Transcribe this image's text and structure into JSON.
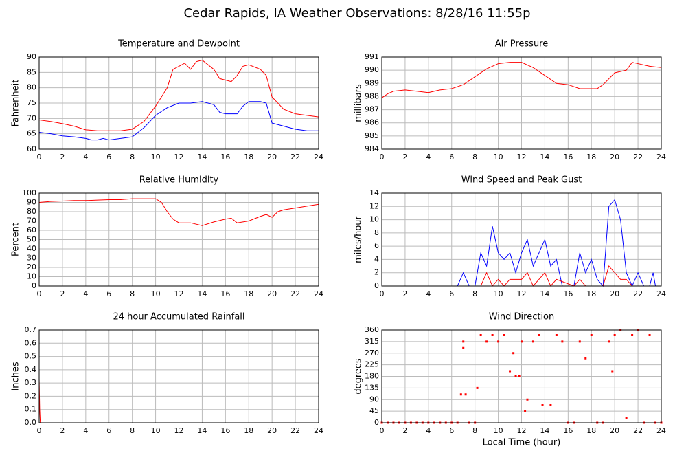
{
  "title": "Cedar Rapids, IA Weather Observations: 8/28/16 11:55p",
  "chart_data": [
    {
      "type": "line",
      "title": "Temperature and Dewpoint",
      "ylabel": "Fahrenheit",
      "xlim": [
        0,
        24
      ],
      "xticks": [
        0,
        2,
        4,
        6,
        8,
        10,
        12,
        14,
        16,
        18,
        20,
        22,
        24
      ],
      "ylim": [
        60,
        90
      ],
      "yticks": [
        60,
        65,
        70,
        75,
        80,
        85,
        90
      ],
      "grid": true,
      "series": [
        {
          "color": "#ff0000",
          "x": [
            0,
            1,
            2,
            3,
            4,
            5,
            6,
            7,
            8,
            9,
            10,
            11,
            11.5,
            12,
            12.5,
            13,
            13.5,
            14,
            15,
            15.5,
            16,
            16.5,
            17,
            17.5,
            18,
            19,
            19.5,
            20,
            21,
            22,
            23,
            24
          ],
          "values": [
            69.5,
            69,
            68.3,
            67.5,
            66.3,
            66,
            66,
            66,
            66.5,
            69,
            74,
            80,
            86,
            87,
            88,
            86,
            88.5,
            89,
            86,
            83,
            82.5,
            82,
            84,
            87,
            87.5,
            86,
            84,
            77,
            73,
            71.5,
            71,
            70.5
          ]
        },
        {
          "color": "#0000ff",
          "x": [
            0,
            1,
            2,
            3,
            4,
            4.5,
            5,
            5.5,
            6,
            7,
            8,
            9,
            10,
            11,
            12,
            13,
            14,
            15,
            15.5,
            16,
            17,
            17.5,
            18,
            19,
            19.5,
            20,
            21,
            22,
            23,
            24
          ],
          "values": [
            65.5,
            65,
            64.3,
            64,
            63.5,
            63,
            63,
            63.5,
            63,
            63.5,
            64,
            67,
            71,
            73.5,
            75,
            75,
            75.5,
            74.5,
            72,
            71.5,
            71.5,
            74,
            75.5,
            75.5,
            75,
            68.5,
            67.5,
            66.5,
            66,
            66
          ]
        }
      ]
    },
    {
      "type": "line",
      "title": "Air Pressure",
      "ylabel": "millibars",
      "xlim": [
        0,
        24
      ],
      "xticks": [
        0,
        2,
        4,
        6,
        8,
        10,
        12,
        14,
        16,
        18,
        20,
        22,
        24
      ],
      "ylim": [
        984,
        991
      ],
      "yticks": [
        984,
        985,
        986,
        987,
        988,
        989,
        990,
        991
      ],
      "grid": true,
      "series": [
        {
          "color": "#ff0000",
          "x": [
            0,
            0.5,
            1,
            2,
            3,
            4,
            5,
            6,
            7,
            8,
            9,
            10,
            11,
            12,
            13,
            14,
            15,
            16,
            17,
            18,
            18.5,
            19,
            20,
            21,
            21.5,
            22,
            23,
            24
          ],
          "values": [
            987.9,
            988.2,
            988.4,
            988.5,
            988.4,
            988.3,
            988.5,
            988.6,
            988.9,
            989.5,
            990.1,
            990.5,
            990.6,
            990.6,
            990.2,
            989.6,
            989,
            988.9,
            988.6,
            988.6,
            988.6,
            988.9,
            989.8,
            990,
            990.6,
            990.5,
            990.3,
            990.2
          ]
        }
      ]
    },
    {
      "type": "line",
      "title": "Relative Humidity",
      "ylabel": "Percent",
      "xlim": [
        0,
        24
      ],
      "xticks": [
        0,
        2,
        4,
        6,
        8,
        10,
        12,
        14,
        16,
        18,
        20,
        22,
        24
      ],
      "ylim": [
        0,
        100
      ],
      "yticks": [
        0,
        10,
        20,
        30,
        40,
        50,
        60,
        70,
        80,
        90,
        100
      ],
      "grid": true,
      "series": [
        {
          "color": "#ff0000",
          "x": [
            0,
            1,
            2,
            3,
            4,
            5,
            6,
            7,
            8,
            9,
            10,
            10.5,
            11,
            11.5,
            12,
            13,
            14,
            15,
            16,
            16.5,
            17,
            18,
            19,
            19.5,
            20,
            20.5,
            21,
            22,
            23,
            24
          ],
          "values": [
            90,
            91,
            91.5,
            92,
            92,
            92.5,
            93,
            93,
            94,
            94,
            94,
            90,
            80,
            72,
            68,
            68,
            65,
            69,
            72,
            73,
            68,
            70,
            75,
            77,
            74,
            80,
            82,
            84,
            86,
            88
          ]
        }
      ]
    },
    {
      "type": "line",
      "title": "Wind Speed and Peak Gust",
      "ylabel": "miles/hour",
      "xlim": [
        0,
        24
      ],
      "xticks": [
        0,
        2,
        4,
        6,
        8,
        10,
        12,
        14,
        16,
        18,
        20,
        22,
        24
      ],
      "ylim": [
        0,
        14
      ],
      "yticks": [
        0,
        2,
        4,
        6,
        8,
        10,
        12,
        14
      ],
      "grid": true,
      "series": [
        {
          "color": "#0000ff",
          "x": [
            0,
            6.5,
            7,
            7.5,
            8,
            8.5,
            9,
            9.5,
            10,
            10.5,
            11,
            11.5,
            12,
            12.5,
            13,
            13.5,
            14,
            14.5,
            15,
            15.5,
            16.5,
            17,
            17.5,
            18,
            18.5,
            19,
            19.5,
            20,
            20.5,
            21,
            21.5,
            22,
            22.5,
            23,
            23.3,
            23.5,
            24
          ],
          "values": [
            0,
            0,
            2,
            0,
            0,
            5,
            3,
            9,
            5,
            4,
            5,
            2,
            5,
            7,
            3,
            5,
            7,
            3,
            4,
            0,
            0,
            5,
            2,
            4,
            1,
            0,
            12,
            13,
            10,
            2,
            0,
            2,
            0,
            0,
            2,
            0,
            0
          ]
        },
        {
          "color": "#ff0000",
          "x": [
            0,
            8.5,
            9,
            9.5,
            10,
            10.5,
            11,
            12,
            12.5,
            13,
            13.5,
            14,
            14.5,
            15,
            16.5,
            17,
            17.5,
            19,
            19.5,
            20,
            20.5,
            21,
            21.5,
            24
          ],
          "values": [
            0,
            0,
            2,
            0,
            1,
            0,
            1,
            1,
            2,
            0,
            1,
            2,
            0,
            1,
            0,
            1,
            0,
            0,
            3,
            2,
            1,
            1,
            0,
            0
          ]
        }
      ]
    },
    {
      "type": "line",
      "title": "24 hour Accumulated Rainfall",
      "ylabel": "Inches",
      "xlim": [
        0,
        24
      ],
      "xticks": [
        0,
        2,
        4,
        6,
        8,
        10,
        12,
        14,
        16,
        18,
        20,
        22,
        24
      ],
      "ylim": [
        0,
        0.7
      ],
      "yticks": [
        {
          "value": 0,
          "label": "0.0"
        },
        0.1,
        0.2,
        0.3,
        0.4,
        0.5,
        0.6,
        0.7
      ],
      "grid": true,
      "series": [
        {
          "color": "#ff0000",
          "x": [
            0,
            0.05,
            0.1,
            24
          ],
          "values": [
            0.33,
            0.1,
            0,
            0
          ]
        }
      ]
    },
    {
      "type": "scatter",
      "title": "Wind Direction",
      "ylabel": "degrees",
      "xlabel": "Local Time (hour)",
      "xlim": [
        0,
        24
      ],
      "xticks": [
        0,
        2,
        4,
        6,
        8,
        10,
        12,
        14,
        16,
        18,
        20,
        22,
        24
      ],
      "ylim": [
        0,
        360
      ],
      "yticks": [
        0,
        45,
        90,
        135,
        180,
        225,
        270,
        315,
        360
      ],
      "grid": true,
      "series": [
        {
          "color": "#ff0000",
          "x": [
            0,
            0.5,
            1,
            1.5,
            2,
            2.5,
            3,
            3.5,
            4,
            4.5,
            5,
            5.5,
            6,
            6.5,
            6.8,
            7,
            7,
            7.2,
            7.5,
            8,
            8.2,
            8.5,
            9,
            9.5,
            10,
            10.5,
            11,
            11.3,
            11.5,
            11.8,
            12,
            12.3,
            12.5,
            13,
            13.5,
            13.8,
            14.5,
            15,
            15.5,
            16,
            16.5,
            17,
            17.5,
            18,
            18.5,
            19,
            19.5,
            19.8,
            20,
            20.5,
            21,
            21.5,
            22,
            22.5,
            23,
            23.5,
            24
          ],
          "values": [
            0,
            0,
            0,
            0,
            0,
            0,
            0,
            0,
            0,
            0,
            0,
            0,
            0,
            0,
            110,
            315,
            290,
            110,
            0,
            0,
            135,
            340,
            315,
            340,
            315,
            340,
            200,
            270,
            180,
            180,
            315,
            45,
            90,
            315,
            340,
            70,
            70,
            340,
            315,
            0,
            0,
            315,
            250,
            340,
            0,
            0,
            315,
            200,
            340,
            360,
            20,
            340,
            360,
            0,
            340,
            0,
            0
          ]
        }
      ]
    }
  ]
}
